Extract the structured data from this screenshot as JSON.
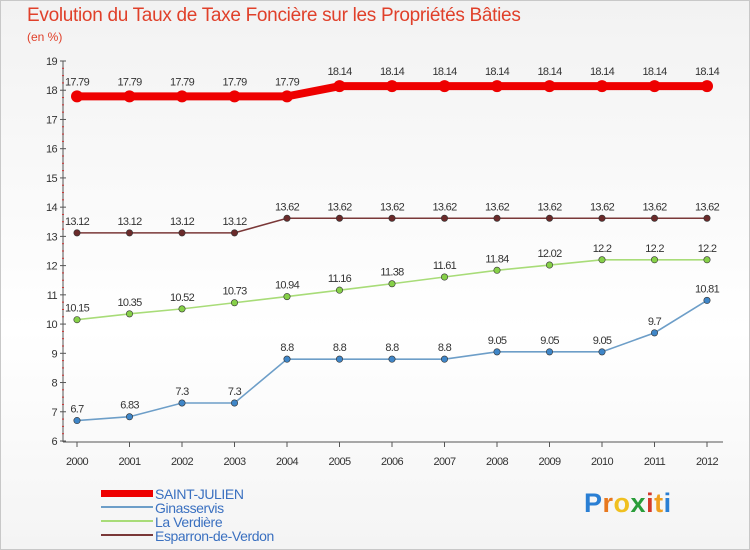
{
  "title": "Evolution du Taux de Taxe Foncière sur les Propriétés Bâties",
  "unit": "(en %)",
  "chart_data": {
    "type": "line",
    "x": [
      "2000",
      "2001",
      "2002",
      "2003",
      "2004",
      "2005",
      "2006",
      "2007",
      "2008",
      "2009",
      "2010",
      "2011",
      "2012"
    ],
    "ylim": [
      6,
      19
    ],
    "yticks": [
      6,
      7,
      8,
      9,
      10,
      11,
      12,
      13,
      14,
      15,
      16,
      17,
      18,
      19
    ],
    "grid": false,
    "series": [
      {
        "name": "SAINT-JULIEN",
        "color": "#ee0000",
        "emphasis": true,
        "values": [
          17.79,
          17.79,
          17.79,
          17.79,
          17.79,
          18.14,
          18.14,
          18.14,
          18.14,
          18.14,
          18.14,
          18.14,
          18.14
        ],
        "labels": [
          "17.79",
          "17.79",
          "17.79",
          "17.79",
          "17.79",
          "18.14",
          "18.14",
          "18.14",
          "18.14",
          "18.14",
          "18.14",
          "18.14",
          "18.14"
        ]
      },
      {
        "name": "Ginasservis",
        "color": "#6d9ec8",
        "marker": "#3f86c8",
        "values": [
          6.7,
          6.83,
          7.3,
          7.3,
          8.8,
          8.8,
          8.8,
          8.8,
          9.05,
          9.05,
          9.05,
          9.7,
          10.81
        ],
        "labels": [
          "6.7",
          "6.83",
          "7.3",
          "7.3",
          "8.8",
          "8.8",
          "8.8",
          "8.8",
          "9.05",
          "9.05",
          "9.05",
          "9.7",
          "10.81"
        ]
      },
      {
        "name": "La Verdière",
        "color": "#a8dc78",
        "marker": "#86d048",
        "values": [
          10.15,
          10.35,
          10.52,
          10.73,
          10.94,
          11.16,
          11.38,
          11.61,
          11.84,
          12.02,
          12.2,
          12.2,
          12.2
        ],
        "labels": [
          "10.15",
          "10.35",
          "10.52",
          "10.73",
          "10.94",
          "11.16",
          "11.38",
          "11.61",
          "11.84",
          "12.02",
          "12.2",
          "12.2",
          "12.2"
        ]
      },
      {
        "name": "Esparron-de-Verdon",
        "color": "#7a3838",
        "marker": "#6a2a2a",
        "values": [
          13.12,
          13.12,
          13.12,
          13.12,
          13.62,
          13.62,
          13.62,
          13.62,
          13.62,
          13.62,
          13.62,
          13.62,
          13.62
        ],
        "labels": [
          "13.12",
          "13.12",
          "13.12",
          "13.12",
          "13.62",
          "13.62",
          "13.62",
          "13.62",
          "13.62",
          "13.62",
          "13.62",
          "13.62",
          "13.62"
        ]
      }
    ],
    "legend_position": "bottom-left"
  },
  "logo": {
    "letters": [
      "P",
      "r",
      "o",
      "x",
      "i",
      "t",
      "i"
    ],
    "colors": [
      "#2a7fd4",
      "#e8781e",
      "#f0c020",
      "#2a9d3a",
      "#d43a2a",
      "#f0a020",
      "#2a7fd4"
    ]
  }
}
